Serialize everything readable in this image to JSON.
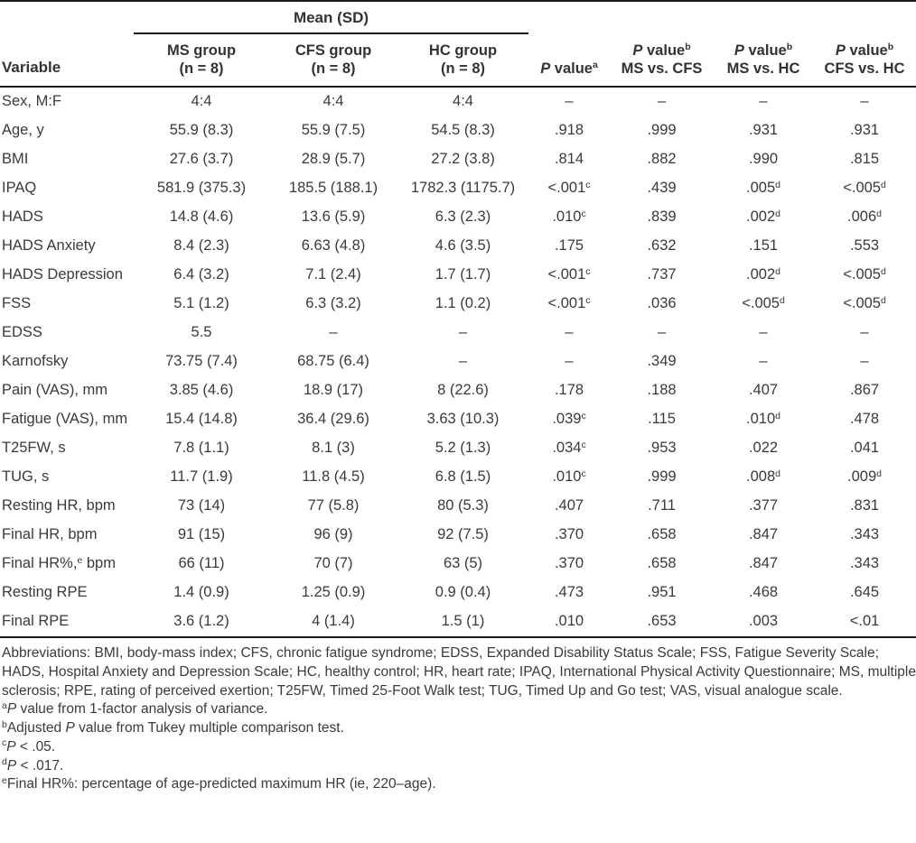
{
  "colors": {
    "text": "#3a3a3a",
    "rule": "#1a1a1a",
    "background": "#ffffff"
  },
  "table": {
    "spanner": "Mean (SD)",
    "variable_header": "Variable",
    "group_headers": [
      {
        "name": "MS group",
        "n": "(n = 8)"
      },
      {
        "name": "CFS group",
        "n": "(n = 8)"
      },
      {
        "name": "HC group",
        "n": "(n = 8)"
      }
    ],
    "pvalue_headers": [
      {
        "line1": [
          {
            "t": "P",
            "i": true
          },
          " value",
          {
            "sup": "a"
          }
        ],
        "line2": ""
      },
      {
        "line1": [
          {
            "t": "P",
            "i": true
          },
          " value",
          {
            "sup": "b"
          }
        ],
        "line2": "MS vs. CFS"
      },
      {
        "line1": [
          {
            "t": "P",
            "i": true
          },
          " value",
          {
            "sup": "b"
          }
        ],
        "line2": "MS vs. HC"
      },
      {
        "line1": [
          {
            "t": "P",
            "i": true
          },
          " value",
          {
            "sup": "b"
          }
        ],
        "line2": "CFS vs. HC"
      }
    ],
    "rows": [
      {
        "cells": [
          "Sex, M:F",
          "4:4",
          "4:4",
          "4:4",
          "–",
          "–",
          "–",
          "–"
        ]
      },
      {
        "cells": [
          "Age, y",
          "55.9 (8.3)",
          "55.9 (7.5)",
          "54.5 (8.3)",
          ".918",
          ".999",
          ".931",
          ".931"
        ]
      },
      {
        "cells": [
          "BMI",
          "27.6 (3.7)",
          "28.9 (5.7)",
          "27.2 (3.8)",
          ".814",
          ".882",
          ".990",
          ".815"
        ]
      },
      {
        "cells": [
          "IPAQ",
          "581.9 (375.3)",
          "185.5 (188.1)",
          "1782.3 (1175.7)",
          [
            "<.001",
            {
              "sup": "c"
            }
          ],
          ".439",
          [
            ".005",
            {
              "sup": "d"
            }
          ],
          [
            "<.005",
            {
              "sup": "d"
            }
          ]
        ]
      },
      {
        "cells": [
          "HADS",
          "14.8 (4.6)",
          "13.6 (5.9)",
          "6.3 (2.3)",
          [
            ".010",
            {
              "sup": "c"
            }
          ],
          ".839",
          [
            ".002",
            {
              "sup": "d"
            }
          ],
          [
            ".006",
            {
              "sup": "d"
            }
          ]
        ]
      },
      {
        "cells": [
          "HADS Anxiety",
          "8.4 (2.3)",
          "6.63 (4.8)",
          "4.6 (3.5)",
          ".175",
          ".632",
          ".151",
          ".553"
        ]
      },
      {
        "cells": [
          "HADS Depression",
          "6.4 (3.2)",
          "7.1 (2.4)",
          "1.7 (1.7)",
          [
            "<.001",
            {
              "sup": "c"
            }
          ],
          ".737",
          [
            ".002",
            {
              "sup": "d"
            }
          ],
          [
            "<.005",
            {
              "sup": "d"
            }
          ]
        ]
      },
      {
        "cells": [
          "FSS",
          "5.1 (1.2)",
          "6.3 (3.2)",
          "1.1 (0.2)",
          [
            "<.001",
            {
              "sup": "c"
            }
          ],
          ".036",
          [
            "<.005",
            {
              "sup": "d"
            }
          ],
          [
            "<.005",
            {
              "sup": "d"
            }
          ]
        ]
      },
      {
        "cells": [
          "EDSS",
          "5.5",
          "–",
          "–",
          "–",
          "–",
          "–",
          "–"
        ]
      },
      {
        "cells": [
          "Karnofsky",
          "73.75 (7.4)",
          "68.75 (6.4)",
          "–",
          "–",
          ".349",
          "–",
          "–"
        ]
      },
      {
        "cells": [
          "Pain (VAS), mm",
          "3.85 (4.6)",
          "18.9 (17)",
          "8 (22.6)",
          ".178",
          ".188",
          ".407",
          ".867"
        ]
      },
      {
        "cells": [
          "Fatigue (VAS), mm",
          "15.4 (14.8)",
          "36.4 (29.6)",
          "3.63 (10.3)",
          [
            ".039",
            {
              "sup": "c"
            }
          ],
          ".115",
          [
            ".010",
            {
              "sup": "d"
            }
          ],
          ".478"
        ]
      },
      {
        "cells": [
          "T25FW, s",
          "7.8 (1.1)",
          "8.1 (3)",
          "5.2 (1.3)",
          [
            ".034",
            {
              "sup": "c"
            }
          ],
          ".953",
          ".022",
          ".041"
        ]
      },
      {
        "cells": [
          "TUG, s",
          "11.7 (1.9)",
          "11.8 (4.5)",
          "6.8 (1.5)",
          [
            ".010",
            {
              "sup": "c"
            }
          ],
          ".999",
          [
            ".008",
            {
              "sup": "d"
            }
          ],
          [
            ".009",
            {
              "sup": "d"
            }
          ]
        ]
      },
      {
        "cells": [
          "Resting HR, bpm",
          "73 (14)",
          "77 (5.8)",
          "80 (5.3)",
          ".407",
          ".711",
          ".377",
          ".831"
        ]
      },
      {
        "cells": [
          "Final HR, bpm",
          "91 (15)",
          "96 (9)",
          "92 (7.5)",
          ".370",
          ".658",
          ".847",
          ".343"
        ]
      },
      {
        "cells": [
          [
            "Final HR%,",
            {
              "sup": "e"
            },
            " bpm"
          ],
          "66 (11)",
          "70 (7)",
          "63 (5)",
          ".370",
          ".658",
          ".847",
          ".343"
        ]
      },
      {
        "cells": [
          "Resting RPE",
          "1.4 (0.9)",
          "1.25 (0.9)",
          "0.9 (0.4)",
          ".473",
          ".951",
          ".468",
          ".645"
        ]
      },
      {
        "cells": [
          "Final RPE",
          "3.6 (1.2)",
          "4 (1.4)",
          "1.5 (1)",
          ".010",
          ".653",
          ".003",
          "<.01"
        ]
      }
    ]
  },
  "footnotes": [
    [
      "Abbreviations: BMI, body-mass index; CFS, chronic fatigue syndrome; EDSS, Expanded Disability Status Scale; FSS, Fatigue Severity Scale; HADS, Hospital Anxiety and Depression Scale; HC, healthy control; HR, heart rate; IPAQ, International Physical Activity Questionnaire; MS, multiple sclerosis; RPE, rating of perceived exertion; T25FW, Timed 25-Foot Walk test; TUG, Timed Up and Go test; VAS, visual analogue scale."
    ],
    [
      {
        "sup": "a"
      },
      {
        "t": "P",
        "i": true
      },
      " value from 1-factor analysis of variance."
    ],
    [
      {
        "sup": "b"
      },
      "Adjusted ",
      {
        "t": "P",
        "i": true
      },
      " value from Tukey multiple comparison test."
    ],
    [
      {
        "sup": "c"
      },
      {
        "t": "P",
        "i": true
      },
      " < .05."
    ],
    [
      {
        "sup": "d"
      },
      {
        "t": "P",
        "i": true
      },
      " < .017."
    ],
    [
      {
        "sup": "e"
      },
      "Final HR%: percentage of age-predicted maximum HR (ie, 220–age)."
    ]
  ]
}
